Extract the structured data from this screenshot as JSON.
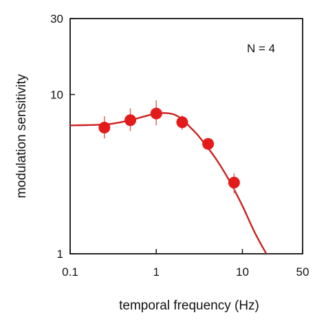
{
  "chart_data": {
    "type": "scatter",
    "title": "",
    "xlabel": "temporal frequency (Hz)",
    "ylabel": "modulation sensitivity",
    "x_scale": "log",
    "y_scale": "log",
    "xlim": [
      0.1,
      50
    ],
    "ylim": [
      1,
      30
    ],
    "x_ticks": [
      0.1,
      1,
      10,
      50
    ],
    "x_tick_labels": [
      "0.1",
      "1",
      "10",
      "50"
    ],
    "y_ticks": [
      1,
      10,
      30
    ],
    "y_tick_labels": [
      "1",
      "10",
      "30"
    ],
    "grid": false,
    "annotation": "N = 4",
    "colors": {
      "marker": "#e31b1b",
      "error": "#e56a6a",
      "fit": "#cc1f1f",
      "axis": "#111111"
    },
    "points": [
      {
        "x": 0.25,
        "y": 6.2,
        "err_low": 5.3,
        "err_high": 7.3
      },
      {
        "x": 0.5,
        "y": 6.9,
        "err_low": 5.9,
        "err_high": 8.2
      },
      {
        "x": 1.0,
        "y": 7.6,
        "err_low": 6.4,
        "err_high": 9.2
      },
      {
        "x": 2.0,
        "y": 6.7,
        "err_low": 6.0,
        "err_high": 7.4
      },
      {
        "x": 4.0,
        "y": 4.9,
        "err_low": 4.5,
        "err_high": 5.3
      },
      {
        "x": 8.0,
        "y": 2.8,
        "err_low": 2.4,
        "err_high": 3.2
      }
    ],
    "fit_curve": {
      "x": [
        0.1,
        0.2,
        0.3,
        0.5,
        0.7,
        1.0,
        1.3,
        1.6,
        2.0,
        2.5,
        3.0,
        4.0,
        5.0,
        7.0,
        10.0,
        14.0,
        20.0
      ],
      "y": [
        6.4,
        6.45,
        6.55,
        6.9,
        7.25,
        7.6,
        7.65,
        7.5,
        7.0,
        6.2,
        5.6,
        4.6,
        3.9,
        2.9,
        2.0,
        1.35,
        0.95
      ]
    }
  }
}
